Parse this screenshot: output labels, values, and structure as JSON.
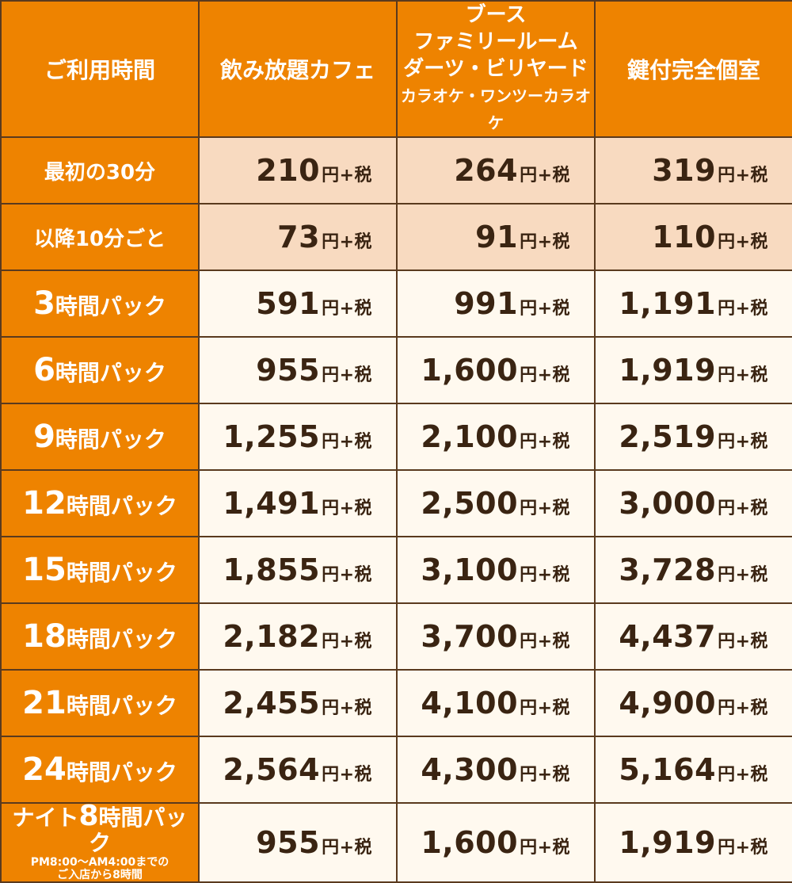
{
  "header": {
    "time": "ご利用時間",
    "cafe": "飲み放題カフェ",
    "booth": [
      "ブース",
      "ファミリールーム",
      "ダーツ・ビリヤード"
    ],
    "booth_small": "カラオケ・ワンツーカラオケ",
    "private": "鍵付完全個室"
  },
  "unit": "円+税",
  "rows": [
    {
      "label": "最初の30分",
      "big": "",
      "cafe": "210",
      "booth": "264",
      "private": "319",
      "shade": "light"
    },
    {
      "label": "以降10分ごと",
      "big": "",
      "cafe": "73",
      "booth": "91",
      "private": "110",
      "shade": "light"
    },
    {
      "big": "3",
      "label": "時間パック",
      "cafe": "591",
      "booth": "991",
      "private": "1,191",
      "shade": "white"
    },
    {
      "big": "6",
      "label": "時間パック",
      "cafe": "955",
      "booth": "1,600",
      "private": "1,919",
      "shade": "white"
    },
    {
      "big": "9",
      "label": "時間パック",
      "cafe": "1,255",
      "booth": "2,100",
      "private": "2,519",
      "shade": "white"
    },
    {
      "big": "12",
      "label": "時間パック",
      "cafe": "1,491",
      "booth": "2,500",
      "private": "3,000",
      "shade": "white"
    },
    {
      "big": "15",
      "label": "時間パック",
      "cafe": "1,855",
      "booth": "3,100",
      "private": "3,728",
      "shade": "white"
    },
    {
      "big": "18",
      "label": "時間パック",
      "cafe": "2,182",
      "booth": "3,700",
      "private": "4,437",
      "shade": "white"
    },
    {
      "big": "21",
      "label": "時間パック",
      "cafe": "2,455",
      "booth": "4,100",
      "private": "4,900",
      "shade": "white"
    },
    {
      "big": "24",
      "label": "時間パック",
      "cafe": "2,564",
      "booth": "4,300",
      "private": "5,164",
      "shade": "white"
    }
  ],
  "night": {
    "prefix": "ナイト",
    "big": "8",
    "suffix": "時間パック",
    "note1": "PM8:00～AM4:00までの",
    "note2": "ご入店から8時間",
    "cafe": "955",
    "booth": "1,600",
    "private": "1,919"
  },
  "colors": {
    "header_bg": "#ee8300",
    "border": "#5a3a1e",
    "light_row": "#f8dac0",
    "white_row": "#fff9ef",
    "text": "#3a2412"
  }
}
